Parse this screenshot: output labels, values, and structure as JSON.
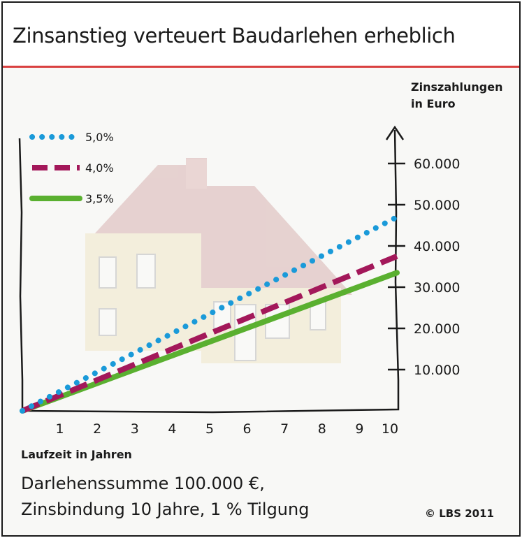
{
  "title": "Zinsanstieg verteuert Baudarlehen erheblich",
  "footer": {
    "line1": "Darlehenssumme 100.000 €,",
    "line2": "Zinsbindung 10 Jahre, 1 % Tilgung",
    "copyright": "© LBS 2011"
  },
  "colors": {
    "title_rule": "#d94040",
    "series_5": "#1a9ad9",
    "series_4": "#a3185a",
    "series_35": "#5ab030"
  },
  "chart_data": {
    "type": "line",
    "xlabel": "Laufzeit in Jahren",
    "ylabel_line1": "Zinszahlungen",
    "ylabel_line2": "in Euro",
    "xlim": [
      0,
      10
    ],
    "ylim": [
      0,
      60000
    ],
    "x_ticks": [
      1,
      2,
      3,
      4,
      5,
      6,
      7,
      8,
      9,
      10
    ],
    "y_ticks": [
      10000,
      20000,
      30000,
      40000,
      50000,
      60000
    ],
    "y_tick_labels": [
      "10.000",
      "20.000",
      "30.000",
      "40.000",
      "50.000",
      "60.000"
    ],
    "legend_position": "top-left",
    "series": [
      {
        "name": "5,0%",
        "style": "dotted",
        "color": "#1a9ad9",
        "x": [
          0,
          10
        ],
        "y": [
          0,
          47000
        ]
      },
      {
        "name": "4,0%",
        "style": "dashed",
        "color": "#a3185a",
        "x": [
          0,
          10
        ],
        "y": [
          0,
          37500
        ]
      },
      {
        "name": "3,5%",
        "style": "solid",
        "color": "#5ab030",
        "x": [
          0,
          10
        ],
        "y": [
          0,
          33500
        ]
      }
    ]
  }
}
